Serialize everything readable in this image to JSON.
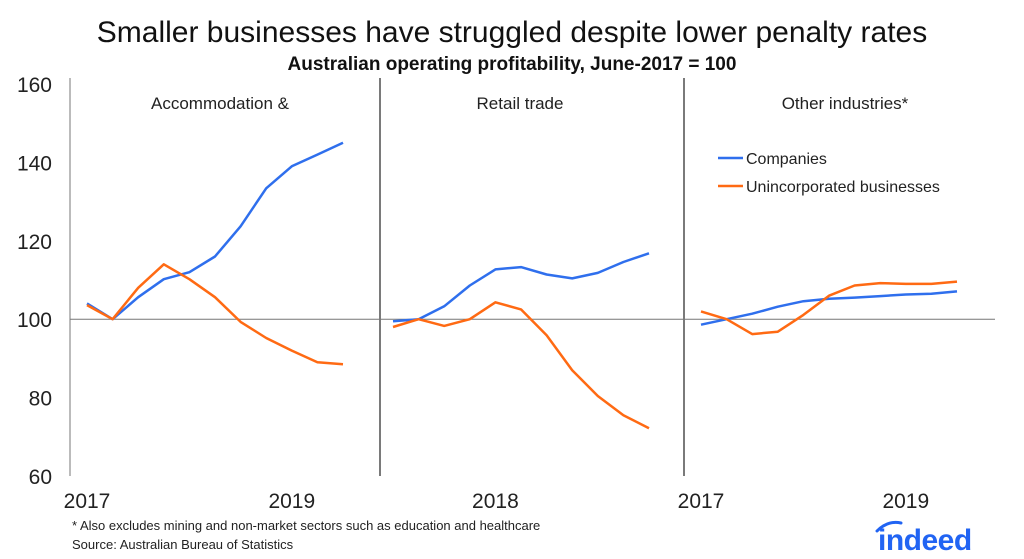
{
  "chart_data": {
    "type": "line",
    "title": "Smaller businesses have struggled despite lower penalty rates",
    "subtitle": "Australian operating profitability, June-2017 = 100",
    "ylim": [
      60,
      160
    ],
    "yticks": [
      60,
      80,
      100,
      120,
      140,
      160
    ],
    "reference_line": 100,
    "grid": false,
    "legend": {
      "placement": "top-right (in third panel)",
      "entries": [
        "Companies",
        "Unincorporated businesses"
      ]
    },
    "colors": {
      "Companies": "#2f6fed",
      "Unincorporated businesses": "#ff6a13"
    },
    "panels": [
      {
        "title": "Accommodation &",
        "xtick_labels": [
          {
            "index": 0,
            "label": "2017"
          },
          {
            "index": 8,
            "label": "2019"
          }
        ],
        "series": [
          {
            "name": "Companies",
            "values": [
              104,
              100,
              105.6,
              110.2,
              112,
              116,
              123.7,
              133.4,
              139,
              142,
              145
            ]
          },
          {
            "name": "Unincorporated businesses",
            "values": [
              103.6,
              100,
              108,
              114,
              110.2,
              105.6,
              99.3,
              95.2,
              92,
              89,
              88.5
            ]
          }
        ]
      },
      {
        "title": "Retail trade",
        "xtick_labels": [
          {
            "index": 4,
            "label": "2018"
          }
        ],
        "series": [
          {
            "name": "Companies",
            "values": [
              99.5,
              100,
              103.3,
              108.6,
              112.7,
              113.3,
              111.4,
              110.4,
              111.8,
              114.6,
              116.8
            ]
          },
          {
            "name": "Unincorporated businesses",
            "values": [
              98,
              100,
              98.3,
              100,
              104.3,
              102.5,
              95.9,
              87,
              80.4,
              75.5,
              72.2
            ]
          }
        ]
      },
      {
        "title": "Other industries*",
        "xtick_labels": [
          {
            "index": 0,
            "label": "2017"
          },
          {
            "index": 8,
            "label": "2019"
          }
        ],
        "series": [
          {
            "name": "Companies",
            "values": [
              98.6,
              100,
              101.4,
              103.2,
              104.6,
              105.2,
              105.5,
              105.9,
              106.3,
              106.5,
              107.1
            ]
          },
          {
            "name": "Unincorporated businesses",
            "values": [
              102,
              100,
              96.2,
              96.8,
              101.1,
              106,
              108.6,
              109.2,
              109,
              109,
              109.6
            ]
          }
        ]
      }
    ]
  },
  "footnote": "* Also excludes mining and non-market sectors such as education and healthcare",
  "source": "Source: Australian Bureau of Statistics",
  "logo": {
    "text": "indeed",
    "color": "#2164f3"
  }
}
